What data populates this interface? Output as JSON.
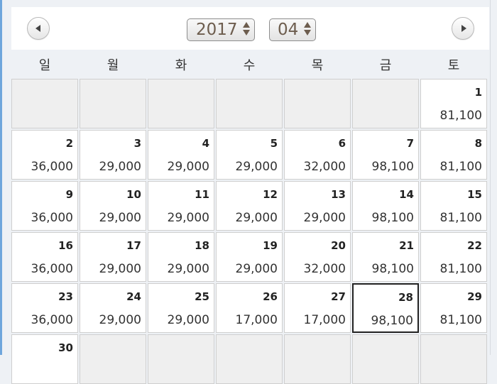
{
  "header": {
    "year": "2017",
    "month": "04"
  },
  "weekdays": [
    "일",
    "월",
    "화",
    "수",
    "목",
    "금",
    "토"
  ],
  "weeks": [
    [
      {
        "day": "",
        "price": ""
      },
      {
        "day": "",
        "price": ""
      },
      {
        "day": "",
        "price": ""
      },
      {
        "day": "",
        "price": ""
      },
      {
        "day": "",
        "price": ""
      },
      {
        "day": "",
        "price": ""
      },
      {
        "day": "1",
        "price": "81,100"
      }
    ],
    [
      {
        "day": "2",
        "price": "36,000"
      },
      {
        "day": "3",
        "price": "29,000"
      },
      {
        "day": "4",
        "price": "29,000"
      },
      {
        "day": "5",
        "price": "29,000"
      },
      {
        "day": "6",
        "price": "32,000"
      },
      {
        "day": "7",
        "price": "98,100"
      },
      {
        "day": "8",
        "price": "81,100"
      }
    ],
    [
      {
        "day": "9",
        "price": "36,000"
      },
      {
        "day": "10",
        "price": "29,000"
      },
      {
        "day": "11",
        "price": "29,000"
      },
      {
        "day": "12",
        "price": "29,000"
      },
      {
        "day": "13",
        "price": "29,000"
      },
      {
        "day": "14",
        "price": "98,100"
      },
      {
        "day": "15",
        "price": "81,100"
      }
    ],
    [
      {
        "day": "16",
        "price": "36,000"
      },
      {
        "day": "17",
        "price": "29,000"
      },
      {
        "day": "18",
        "price": "29,000"
      },
      {
        "day": "19",
        "price": "29,000"
      },
      {
        "day": "20",
        "price": "32,000"
      },
      {
        "day": "21",
        "price": "98,100"
      },
      {
        "day": "22",
        "price": "81,100"
      }
    ],
    [
      {
        "day": "23",
        "price": "36,000"
      },
      {
        "day": "24",
        "price": "29,000"
      },
      {
        "day": "25",
        "price": "29,000"
      },
      {
        "day": "26",
        "price": "17,000"
      },
      {
        "day": "27",
        "price": "17,000"
      },
      {
        "day": "28",
        "price": "98,100"
      },
      {
        "day": "29",
        "price": "81,100"
      }
    ],
    [
      {
        "day": "30",
        "price": ""
      },
      {
        "day": "",
        "price": ""
      },
      {
        "day": "",
        "price": ""
      },
      {
        "day": "",
        "price": ""
      },
      {
        "day": "",
        "price": ""
      },
      {
        "day": "",
        "price": ""
      },
      {
        "day": "",
        "price": ""
      }
    ]
  ],
  "selected_day": "28",
  "colors": {
    "accent_frame": "#6fa6dc",
    "empty_cell": "#efefef",
    "select_text": "#6d5d4e"
  }
}
